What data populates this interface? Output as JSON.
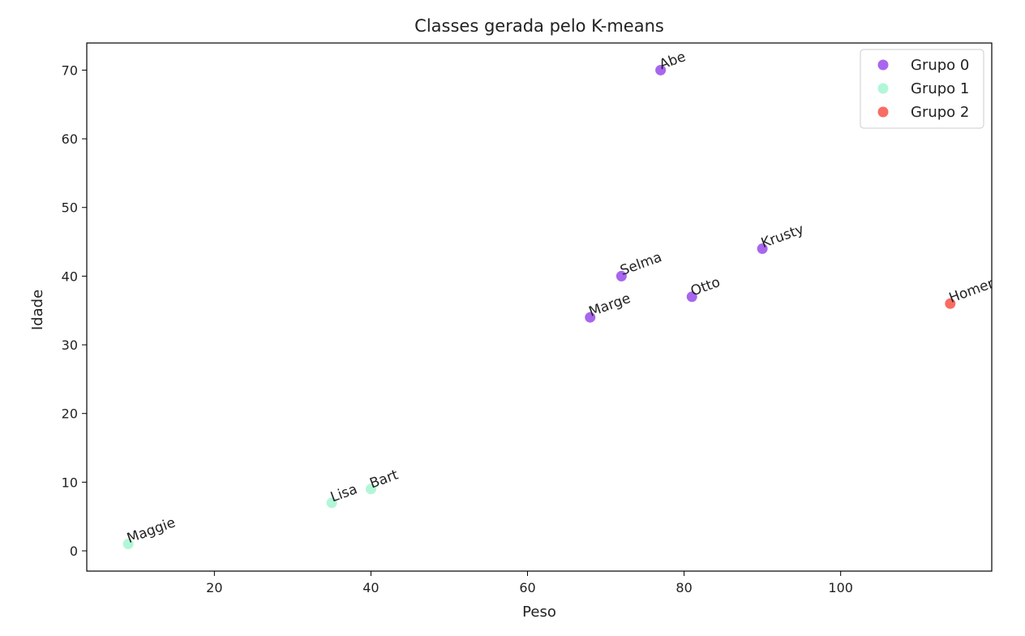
{
  "chart_data": {
    "type": "scatter",
    "title": "Classes gerada pelo K-means",
    "xlabel": "Peso",
    "ylabel": "Idade",
    "xlim": [
      3.7,
      119.3
    ],
    "ylim": [
      -2.95,
      73.95
    ],
    "xticks": [
      20,
      40,
      60,
      80,
      100
    ],
    "yticks": [
      0,
      10,
      20,
      30,
      40,
      50,
      60,
      70
    ],
    "grid": false,
    "legend_position": "top-right",
    "series": [
      {
        "name": "Grupo 0",
        "color": "#a866ee",
        "points": [
          {
            "label": "Abe",
            "x": 77,
            "y": 70
          },
          {
            "label": "Selma",
            "x": 72,
            "y": 40
          },
          {
            "label": "Marge",
            "x": 68,
            "y": 34
          },
          {
            "label": "Otto",
            "x": 81,
            "y": 37
          },
          {
            "label": "Krusty",
            "x": 90,
            "y": 44
          }
        ]
      },
      {
        "name": "Grupo 1",
        "color": "#b2f6d9",
        "points": [
          {
            "label": "Maggie",
            "x": 9,
            "y": 1
          },
          {
            "label": "Lisa",
            "x": 35,
            "y": 7
          },
          {
            "label": "Bart",
            "x": 40,
            "y": 9
          }
        ]
      },
      {
        "name": "Grupo 2",
        "color": "#f86c63",
        "points": [
          {
            "label": "Homer",
            "x": 114,
            "y": 36
          }
        ]
      }
    ]
  }
}
